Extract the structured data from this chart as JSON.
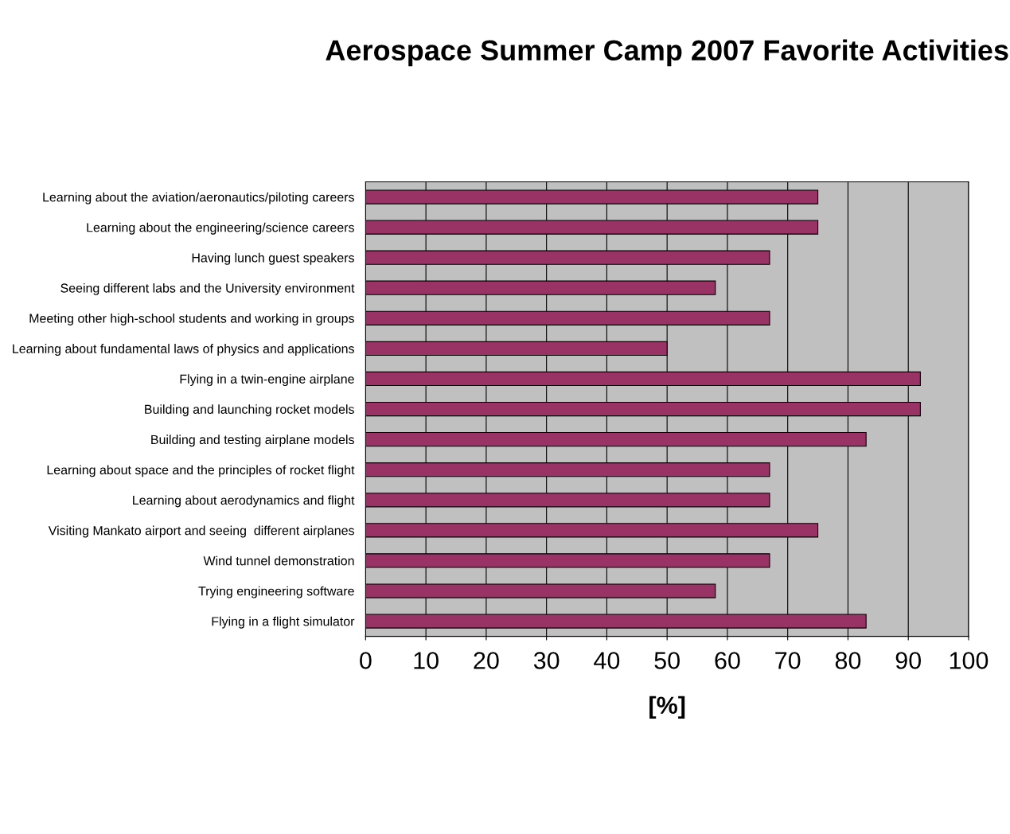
{
  "chart_data": {
    "type": "bar",
    "orientation": "horizontal",
    "title": "Aerospace Summer Camp 2007 Favorite Activities",
    "xlabel": "[%]",
    "categories": [
      "Learning about the aviation/aeronautics/piloting careers",
      "Learning about the engineering/science careers",
      "Having lunch guest speakers",
      "Seeing different labs and the University environment",
      "Meeting other high-school students and working in groups",
      "Learning about fundamental laws of physics and applications",
      "Flying in a twin-engine airplane",
      "Building and launching rocket models",
      "Building and testing airplane models",
      "Learning about space and the principles of rocket flight",
      "Learning about aerodynamics and flight",
      "Visiting Mankato airport and seeing  different airplanes",
      "Wind tunnel demonstration",
      "Trying engineering software",
      "Flying in a flight simulator"
    ],
    "values": [
      75,
      75,
      67,
      58,
      67,
      50,
      92,
      92,
      83,
      67,
      67,
      75,
      67,
      58,
      83
    ],
    "color": "#993366",
    "xlim": [
      0,
      100
    ],
    "xticks": [
      0,
      10,
      20,
      30,
      40,
      50,
      60,
      70,
      80,
      90,
      100
    ],
    "grid": "x"
  }
}
